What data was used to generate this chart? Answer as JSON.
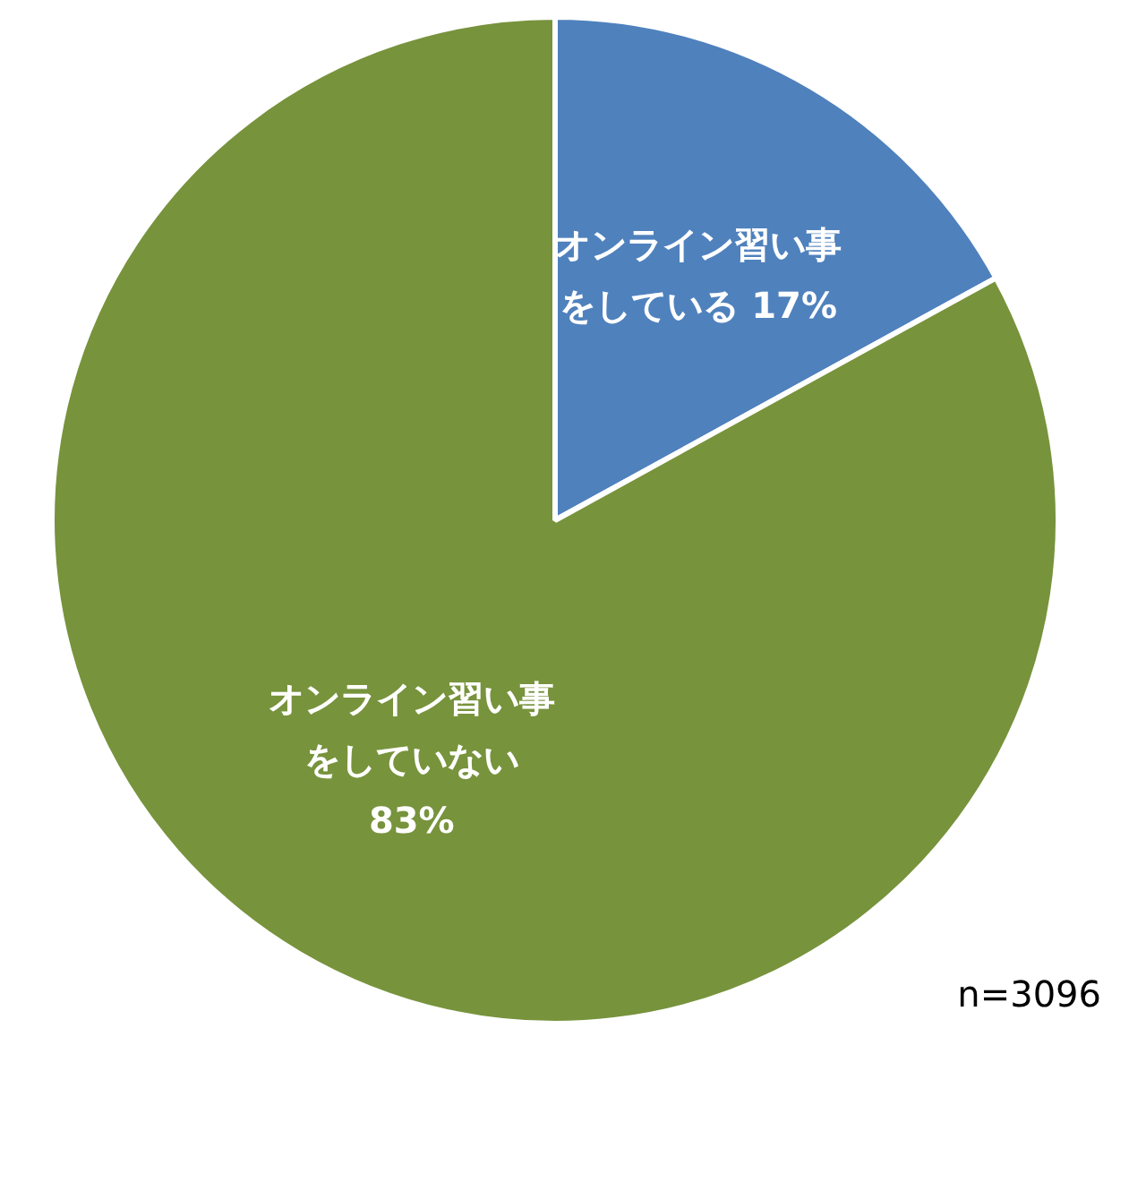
{
  "chart_data": {
    "type": "pie",
    "categories": [
      "オンライン習い事をしている",
      "オンライン習い事をしていない"
    ],
    "values": [
      17,
      83
    ],
    "value_labels": [
      "17%",
      "83%"
    ],
    "colors": [
      "#4f81bd",
      "#77933c"
    ],
    "legend": false,
    "annotations": [
      "n=3096"
    ]
  }
}
